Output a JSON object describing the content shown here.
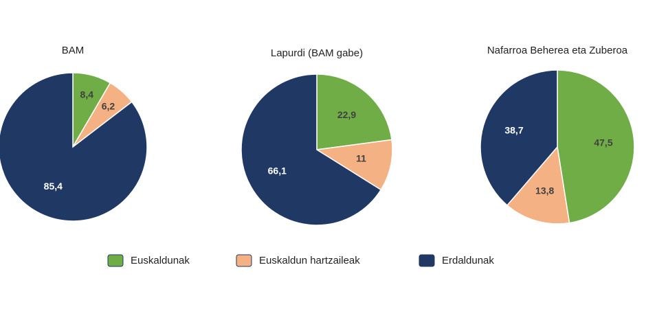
{
  "chart_data": [
    {
      "type": "pie",
      "title": "BAM",
      "categories": [
        "Euskaldunak",
        "Euskaldun hartzaileak",
        "Erdaldunak"
      ],
      "values": [
        8.4,
        6.2,
        85.4
      ],
      "value_labels": [
        "8,4",
        "6,2",
        "85,4"
      ],
      "colors": [
        "#70ad47",
        "#f4b183",
        "#203864"
      ]
    },
    {
      "type": "pie",
      "title": "Lapurdi (BAM gabe)",
      "categories": [
        "Euskaldunak",
        "Euskaldun hartzaileak",
        "Erdaldunak"
      ],
      "values": [
        22.9,
        11,
        66.1
      ],
      "value_labels": [
        "22,9",
        "11",
        "66,1"
      ],
      "colors": [
        "#70ad47",
        "#f4b183",
        "#203864"
      ]
    },
    {
      "type": "pie",
      "title": "Nafarroa Beherea eta Zuberoa",
      "categories": [
        "Euskaldunak",
        "Euskaldun hartzaileak",
        "Erdaldunak"
      ],
      "values": [
        47.5,
        13.8,
        38.7
      ],
      "value_labels": [
        "47,5",
        "13,8",
        "38,7"
      ],
      "colors": [
        "#70ad47",
        "#f4b183",
        "#203864"
      ]
    }
  ]
}
